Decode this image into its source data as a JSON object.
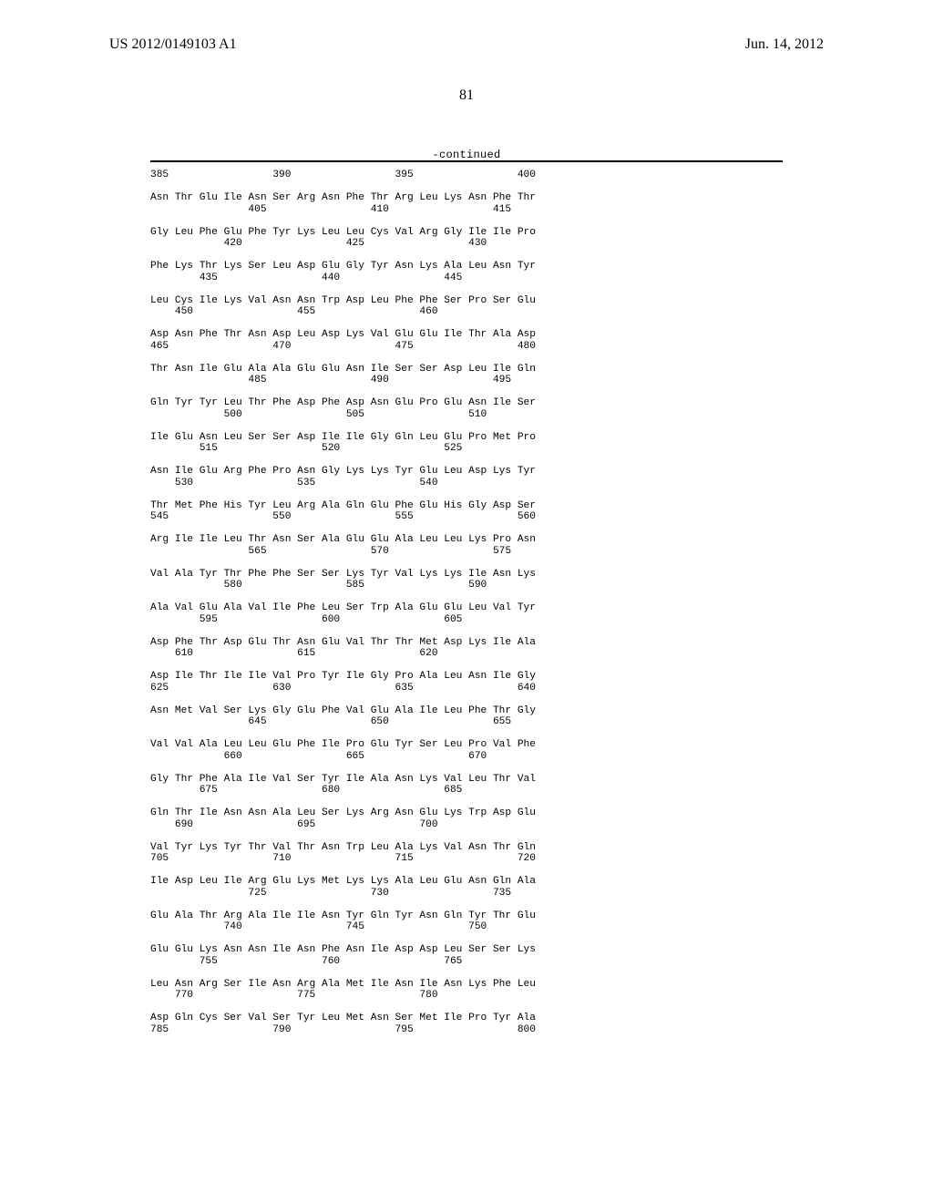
{
  "header": {
    "pub_number": "US 2012/0149103 A1",
    "pub_date": "Jun. 14, 2012",
    "page_number": "81",
    "continued_label": "-continued"
  },
  "seq": {
    "font_family": "Courier New",
    "font_size_pt": 8.4,
    "text_color": "#000000",
    "background": "#ffffff",
    "lines": [
      "385                 390                 395                 400",
      "",
      "Asn Thr Glu Ile Asn Ser Arg Asn Phe Thr Arg Leu Lys Asn Phe Thr",
      "                405                 410                 415",
      "",
      "Gly Leu Phe Glu Phe Tyr Lys Leu Leu Cys Val Arg Gly Ile Ile Pro",
      "            420                 425                 430",
      "",
      "Phe Lys Thr Lys Ser Leu Asp Glu Gly Tyr Asn Lys Ala Leu Asn Tyr",
      "        435                 440                 445",
      "",
      "Leu Cys Ile Lys Val Asn Asn Trp Asp Leu Phe Phe Ser Pro Ser Glu",
      "    450                 455                 460",
      "",
      "Asp Asn Phe Thr Asn Asp Leu Asp Lys Val Glu Glu Ile Thr Ala Asp",
      "465                 470                 475                 480",
      "",
      "Thr Asn Ile Glu Ala Ala Glu Glu Asn Ile Ser Ser Asp Leu Ile Gln",
      "                485                 490                 495",
      "",
      "Gln Tyr Tyr Leu Thr Phe Asp Phe Asp Asn Glu Pro Glu Asn Ile Ser",
      "            500                 505                 510",
      "",
      "Ile Glu Asn Leu Ser Ser Asp Ile Ile Gly Gln Leu Glu Pro Met Pro",
      "        515                 520                 525",
      "",
      "Asn Ile Glu Arg Phe Pro Asn Gly Lys Lys Tyr Glu Leu Asp Lys Tyr",
      "    530                 535                 540",
      "",
      "Thr Met Phe His Tyr Leu Arg Ala Gln Glu Phe Glu His Gly Asp Ser",
      "545                 550                 555                 560",
      "",
      "Arg Ile Ile Leu Thr Asn Ser Ala Glu Glu Ala Leu Leu Lys Pro Asn",
      "                565                 570                 575",
      "",
      "Val Ala Tyr Thr Phe Phe Ser Ser Lys Tyr Val Lys Lys Ile Asn Lys",
      "            580                 585                 590",
      "",
      "Ala Val Glu Ala Val Ile Phe Leu Ser Trp Ala Glu Glu Leu Val Tyr",
      "        595                 600                 605",
      "",
      "Asp Phe Thr Asp Glu Thr Asn Glu Val Thr Thr Met Asp Lys Ile Ala",
      "    610                 615                 620",
      "",
      "Asp Ile Thr Ile Ile Val Pro Tyr Ile Gly Pro Ala Leu Asn Ile Gly",
      "625                 630                 635                 640",
      "",
      "Asn Met Val Ser Lys Gly Glu Phe Val Glu Ala Ile Leu Phe Thr Gly",
      "                645                 650                 655",
      "",
      "Val Val Ala Leu Leu Glu Phe Ile Pro Glu Tyr Ser Leu Pro Val Phe",
      "            660                 665                 670",
      "",
      "Gly Thr Phe Ala Ile Val Ser Tyr Ile Ala Asn Lys Val Leu Thr Val",
      "        675                 680                 685",
      "",
      "Gln Thr Ile Asn Asn Ala Leu Ser Lys Arg Asn Glu Lys Trp Asp Glu",
      "    690                 695                 700",
      "",
      "Val Tyr Lys Tyr Thr Val Thr Asn Trp Leu Ala Lys Val Asn Thr Gln",
      "705                 710                 715                 720",
      "",
      "Ile Asp Leu Ile Arg Glu Lys Met Lys Lys Ala Leu Glu Asn Gln Ala",
      "                725                 730                 735",
      "",
      "Glu Ala Thr Arg Ala Ile Ile Asn Tyr Gln Tyr Asn Gln Tyr Thr Glu",
      "            740                 745                 750",
      "",
      "Glu Glu Lys Asn Asn Ile Asn Phe Asn Ile Asp Asp Leu Ser Ser Lys",
      "        755                 760                 765",
      "",
      "Leu Asn Arg Ser Ile Asn Arg Ala Met Ile Asn Ile Asn Lys Phe Leu",
      "    770                 775                 780",
      "",
      "Asp Gln Cys Ser Val Ser Tyr Leu Met Asn Ser Met Ile Pro Tyr Ala",
      "785                 790                 795                 800"
    ]
  }
}
